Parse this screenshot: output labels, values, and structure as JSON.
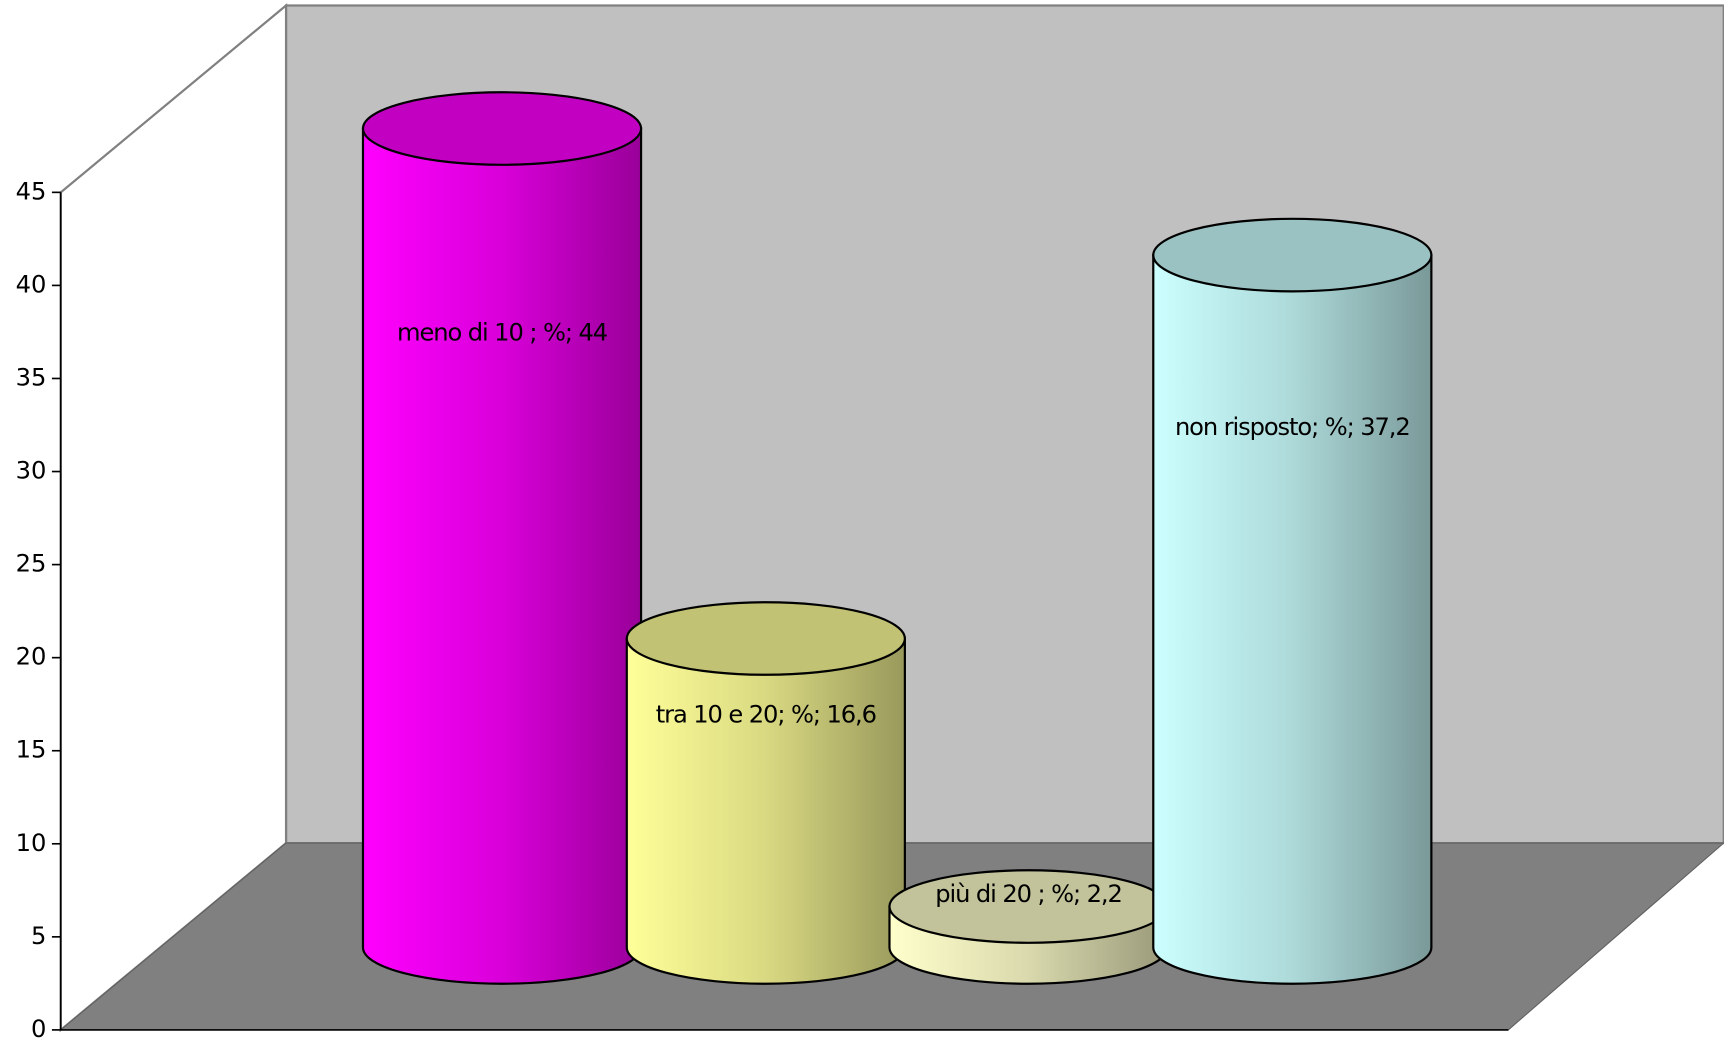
{
  "chart_data": {
    "type": "cylinder",
    "values": [
      44,
      16.6,
      2.2,
      37.2
    ],
    "value_labels": [
      "meno di 10 ; %; 44",
      "tra 10 e 20; %; 16,6",
      "più di 20 ; %; 2,2",
      "non risposto; %; 37,2"
    ],
    "colors": [
      "#ff00ff",
      "#ffff99",
      "#ffffcc",
      "#ccffff"
    ],
    "ylim": [
      0,
      45
    ],
    "yticks": [
      0,
      5,
      10,
      15,
      20,
      25,
      30,
      35,
      40,
      45
    ]
  }
}
